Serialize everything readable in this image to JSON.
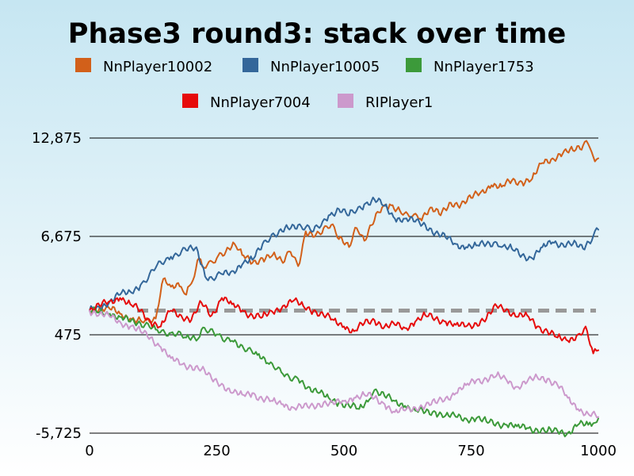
{
  "chart_data": {
    "type": "line",
    "title": "Phase3 round3: stack over time",
    "xlabel": "",
    "ylabel": "",
    "xlim": [
      0,
      1000
    ],
    "ylim": [
      -5725,
      12875
    ],
    "x_ticks": [
      0,
      250,
      500,
      750,
      1000
    ],
    "x_tick_labels": [
      "0",
      "250",
      "500",
      "750",
      "1000"
    ],
    "y_ticks": [
      -5725,
      475,
      6675,
      12875
    ],
    "y_tick_labels": [
      "-5,725",
      "475",
      "6,675",
      "12,875"
    ],
    "grid": "horizontal",
    "legend_position": "top",
    "reference_line": {
      "value": 2000,
      "style": "dashed",
      "color": "#999999"
    },
    "series": [
      {
        "name": "NnPlayer10002",
        "color": "#d2601a",
        "x": [
          0,
          20,
          40,
          60,
          80,
          100,
          130,
          145,
          160,
          180,
          190,
          200,
          215,
          225,
          250,
          265,
          285,
          300,
          320,
          340,
          360,
          380,
          395,
          410,
          425,
          445,
          460,
          475,
          490,
          510,
          525,
          540,
          560,
          575,
          590,
          610,
          625,
          650,
          670,
          690,
          710,
          730,
          750,
          770,
          790,
          810,
          830,
          850,
          870,
          890,
          910,
          930,
          950,
          970,
          980,
          990,
          1000
        ],
        "y": [
          2000,
          2200,
          2100,
          1800,
          1500,
          1400,
          1500,
          4000,
          3500,
          3500,
          3000,
          3700,
          5300,
          4700,
          5300,
          5500,
          6200,
          5500,
          5000,
          5300,
          5500,
          5000,
          5700,
          4800,
          7000,
          6800,
          7200,
          7400,
          6500,
          6000,
          7200,
          6400,
          7700,
          8500,
          8700,
          8300,
          8100,
          7800,
          8500,
          8000,
          8800,
          8700,
          9100,
          9500,
          9900,
          9800,
          10200,
          10100,
          10300,
          11300,
          11600,
          11900,
          12100,
          12400,
          12500,
          11700,
          11600
        ]
      },
      {
        "name": "NnPlayer10005",
        "color": "#34679a",
        "x": [
          0,
          20,
          40,
          60,
          80,
          100,
          130,
          160,
          190,
          210,
          230,
          260,
          280,
          300,
          320,
          340,
          370,
          390,
          410,
          440,
          470,
          490,
          510,
          540,
          560,
          580,
          600,
          620,
          640,
          660,
          680,
          700,
          720,
          740,
          760,
          780,
          800,
          810,
          830,
          850,
          870,
          890,
          910,
          930,
          950,
          970,
          990,
          1000
        ],
        "y": [
          2000,
          2200,
          2600,
          3000,
          3200,
          3600,
          4700,
          5400,
          5800,
          6000,
          4000,
          4300,
          4500,
          4900,
          5200,
          6200,
          6800,
          7200,
          7400,
          7000,
          8000,
          8400,
          8000,
          8700,
          9000,
          8600,
          7800,
          7800,
          7600,
          7400,
          6900,
          6600,
          6200,
          6000,
          6100,
          6200,
          6300,
          6000,
          5900,
          5500,
          5300,
          6000,
          6300,
          6200,
          6200,
          5900,
          6700,
          7100
        ]
      },
      {
        "name": "NnPlayer1753",
        "color": "#3c9a3a",
        "x": [
          0,
          20,
          40,
          60,
          80,
          100,
          130,
          160,
          190,
          210,
          220,
          250,
          280,
          300,
          330,
          350,
          380,
          410,
          430,
          450,
          470,
          490,
          510,
          530,
          550,
          560,
          580,
          600,
          620,
          640,
          660,
          680,
          700,
          720,
          740,
          760,
          780,
          800,
          820,
          840,
          860,
          880,
          900,
          920,
          940,
          960,
          980,
          990,
          1000
        ],
        "y": [
          2000,
          1900,
          1800,
          1600,
          1300,
          1200,
          800,
          600,
          300,
          100,
          800,
          500,
          100,
          -200,
          -800,
          -1300,
          -2000,
          -2300,
          -2800,
          -3200,
          -3500,
          -3800,
          -4000,
          -4200,
          -3600,
          -3000,
          -3400,
          -3700,
          -4000,
          -4300,
          -4400,
          -4400,
          -4600,
          -4700,
          -4800,
          -4800,
          -5000,
          -5100,
          -5200,
          -5300,
          -5400,
          -5500,
          -5600,
          -5600,
          -5700,
          -5200,
          -5200,
          -5100,
          -4800
        ]
      },
      {
        "name": "NnPlayer7004",
        "color": "#e60b0b",
        "x": [
          0,
          20,
          40,
          60,
          80,
          100,
          120,
          140,
          160,
          180,
          200,
          220,
          240,
          260,
          280,
          300,
          320,
          340,
          360,
          380,
          400,
          420,
          440,
          460,
          480,
          500,
          520,
          540,
          560,
          580,
          600,
          620,
          640,
          660,
          680,
          700,
          720,
          740,
          760,
          780,
          800,
          820,
          840,
          860,
          880,
          900,
          920,
          940,
          960,
          975,
          990,
          1000
        ],
        "y": [
          2000,
          2300,
          2600,
          2800,
          2400,
          2000,
          1300,
          1000,
          2000,
          1700,
          1400,
          2500,
          1700,
          2800,
          2400,
          2000,
          1700,
          1600,
          1900,
          2300,
          2600,
          2300,
          2000,
          1700,
          1400,
          1000,
          700,
          1200,
          1400,
          1000,
          1100,
          900,
          1300,
          1700,
          1500,
          1300,
          1100,
          1000,
          1200,
          1500,
          2300,
          2100,
          1600,
          1700,
          1000,
          700,
          300,
          100,
          500,
          1000,
          -700,
          -500
        ]
      },
      {
        "name": "RIPlayer1",
        "color": "#cc99cc",
        "x": [
          0,
          20,
          40,
          60,
          80,
          100,
          120,
          140,
          160,
          180,
          200,
          220,
          240,
          260,
          280,
          300,
          320,
          340,
          360,
          380,
          400,
          420,
          440,
          460,
          480,
          500,
          520,
          540,
          560,
          580,
          600,
          620,
          640,
          660,
          680,
          700,
          720,
          740,
          760,
          780,
          800,
          820,
          840,
          860,
          880,
          900,
          920,
          940,
          960,
          980,
          1000
        ],
        "y": [
          2000,
          1800,
          1600,
          1300,
          1000,
          700,
          300,
          -300,
          -1000,
          -1400,
          -1500,
          -1700,
          -2300,
          -2600,
          -3200,
          -3300,
          -3200,
          -3600,
          -3700,
          -3900,
          -4100,
          -4100,
          -4000,
          -3800,
          -3900,
          -3700,
          -3500,
          -3300,
          -3500,
          -3900,
          -4400,
          -4300,
          -4100,
          -4000,
          -3800,
          -3500,
          -3200,
          -2700,
          -2400,
          -2300,
          -2100,
          -2400,
          -2800,
          -2500,
          -2200,
          -2300,
          -2700,
          -3500,
          -4200,
          -4500,
          -4700
        ]
      }
    ]
  }
}
